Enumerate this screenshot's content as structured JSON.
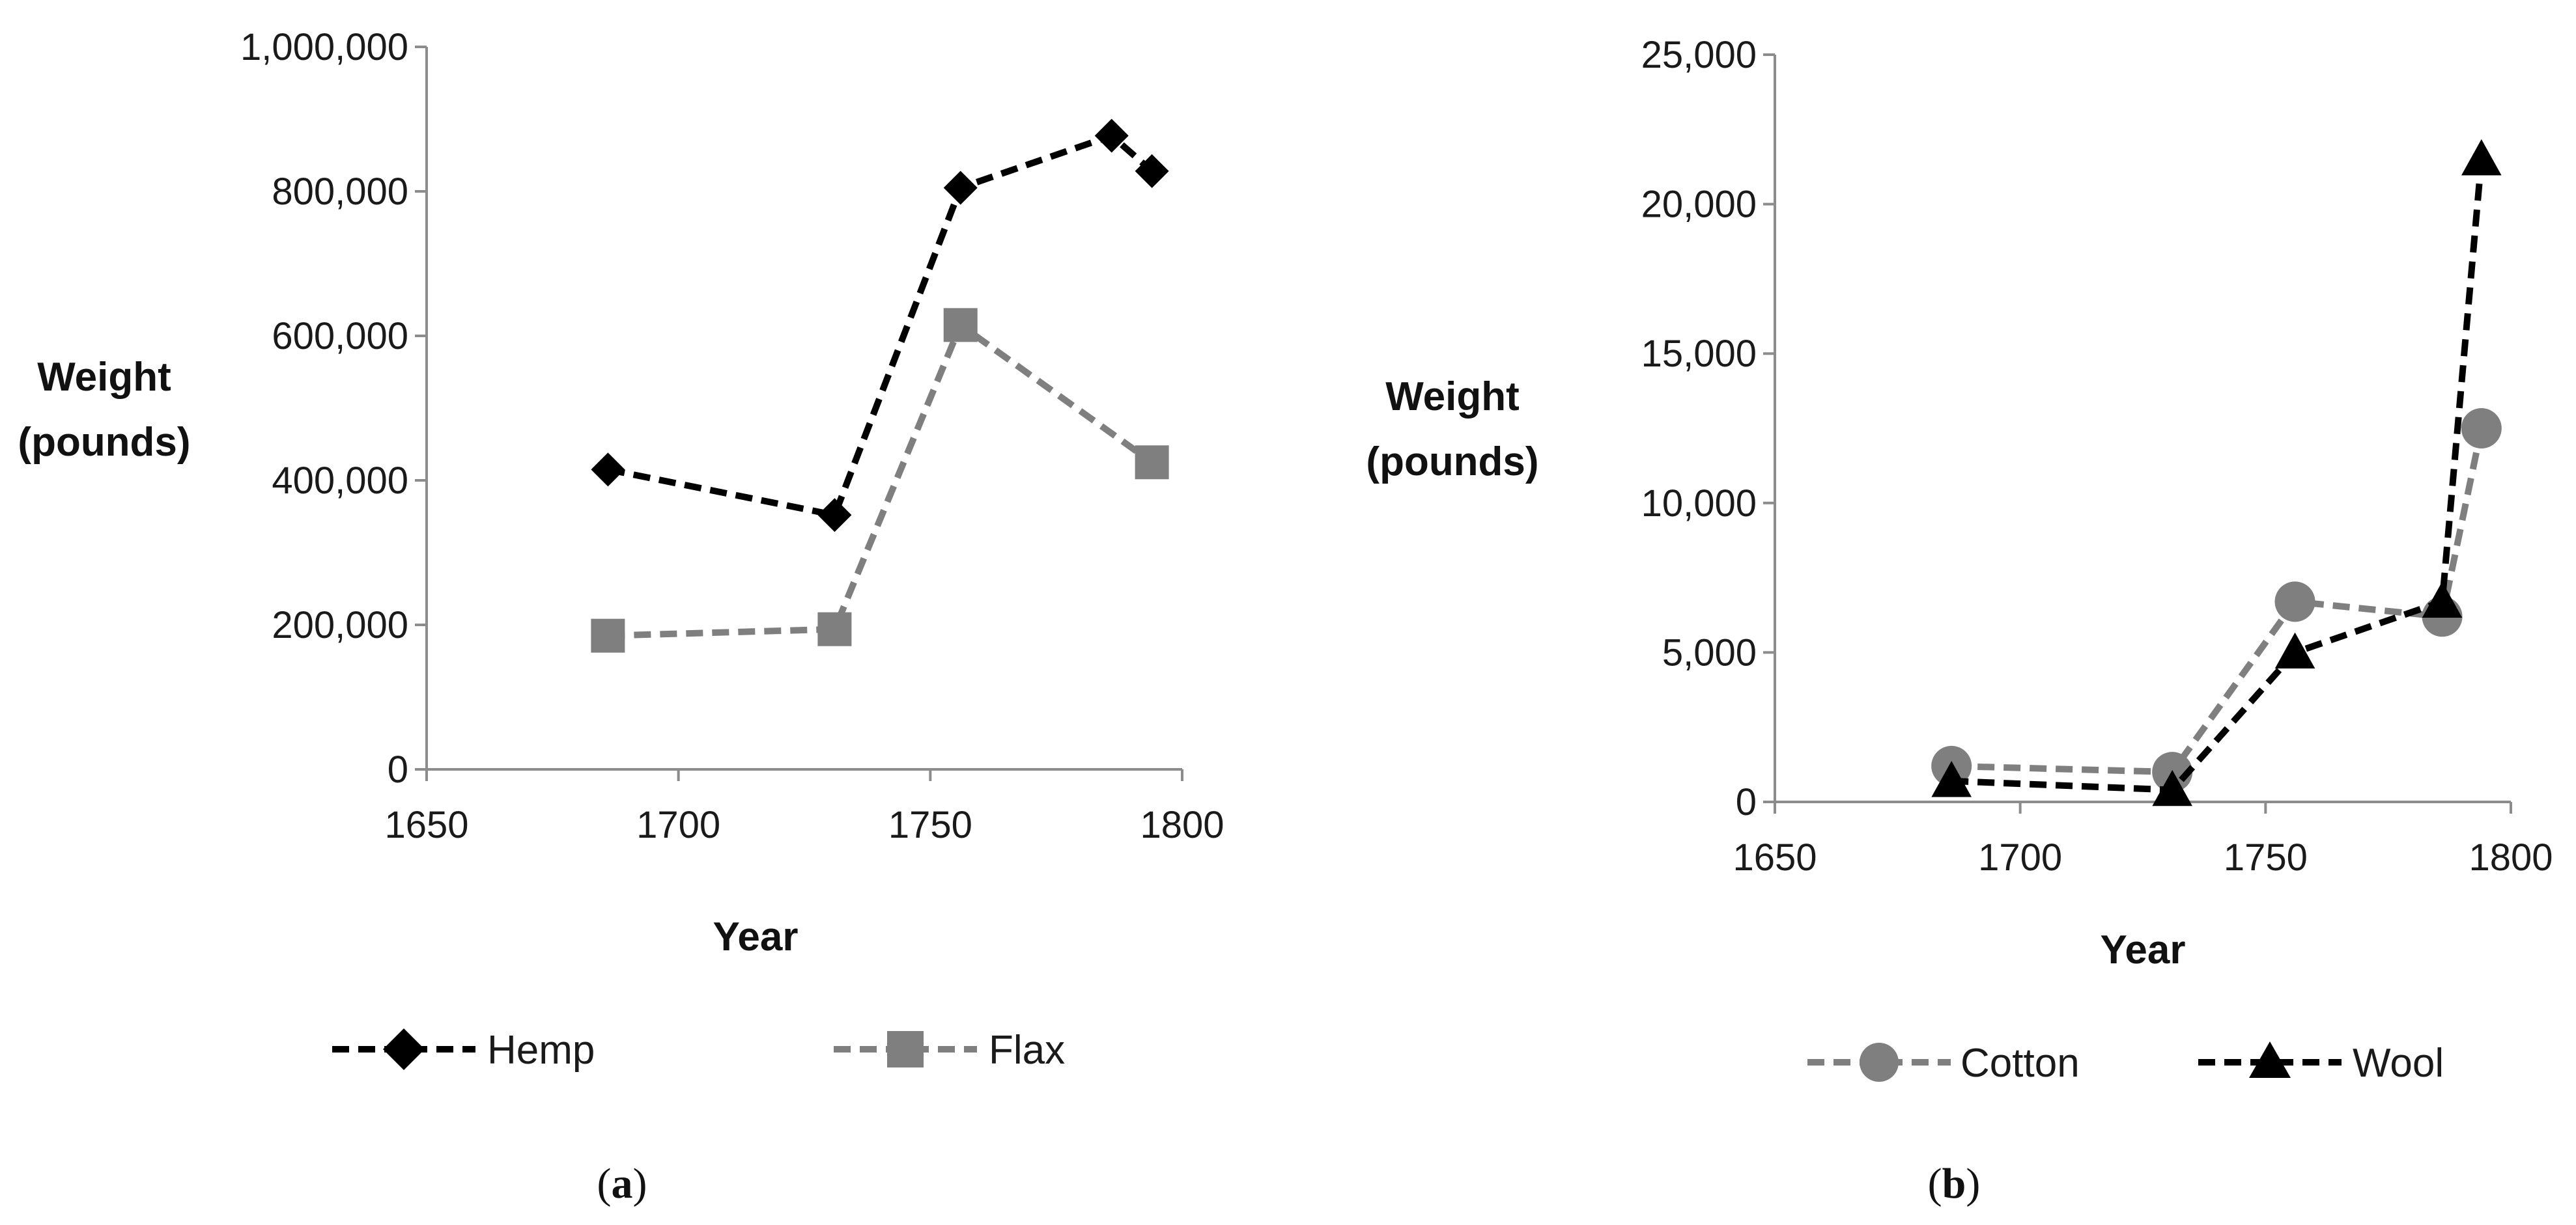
{
  "chart_data": [
    {
      "type": "line",
      "panel_label": "a",
      "xlabel": "Year",
      "ylabel_lines": [
        "Weight",
        "(pounds)"
      ],
      "xlim": [
        1650,
        1800
      ],
      "ylim": [
        0,
        1000000
      ],
      "x_ticks": [
        1650,
        1700,
        1750,
        1800
      ],
      "x_tick_labels": [
        "1650",
        "1700",
        "1750",
        "1800"
      ],
      "y_ticks": [
        0,
        200000,
        400000,
        600000,
        800000,
        1000000
      ],
      "y_tick_labels": [
        "0",
        "200,000",
        "400,000",
        "600,000",
        "800,000",
        "1,000,000"
      ],
      "grid": false,
      "legend_position": "bottom",
      "series": [
        {
          "name": "Hemp",
          "color": "#000000",
          "marker": "diamond",
          "line_style": "dashed",
          "x": [
            1686,
            1731,
            1756,
            1786,
            1794
          ],
          "y": [
            415000,
            352000,
            805000,
            877000,
            828000
          ]
        },
        {
          "name": "Flax",
          "color": "#7f7f7f",
          "marker": "square",
          "line_style": "dashed",
          "x": [
            1686,
            1731,
            1756,
            1794
          ],
          "y": [
            185000,
            194000,
            615000,
            425000
          ]
        }
      ]
    },
    {
      "type": "line",
      "panel_label": "b",
      "xlabel": "Year",
      "ylabel_lines": [
        "Weight",
        "(pounds)"
      ],
      "xlim": [
        1650,
        1800
      ],
      "ylim": [
        0,
        25000
      ],
      "x_ticks": [
        1650,
        1700,
        1750,
        1800
      ],
      "x_tick_labels": [
        "1650",
        "1700",
        "1750",
        "1800"
      ],
      "y_ticks": [
        0,
        5000,
        10000,
        15000,
        20000,
        25000
      ],
      "y_tick_labels": [
        "0",
        "5,000",
        "10,000",
        "15,000",
        "20,000",
        "25,000"
      ],
      "grid": false,
      "legend_position": "bottom",
      "series": [
        {
          "name": "Cotton",
          "color": "#7f7f7f",
          "marker": "circle",
          "line_style": "dashed",
          "x": [
            1686,
            1731,
            1756,
            1786,
            1794
          ],
          "y": [
            1200,
            1000,
            6700,
            6200,
            12500
          ]
        },
        {
          "name": "Wool",
          "color": "#000000",
          "marker": "triangle",
          "line_style": "dashed",
          "x": [
            1686,
            1731,
            1756,
            1786,
            1794
          ],
          "y": [
            700,
            400,
            5000,
            6700,
            21500
          ]
        }
      ]
    }
  ]
}
